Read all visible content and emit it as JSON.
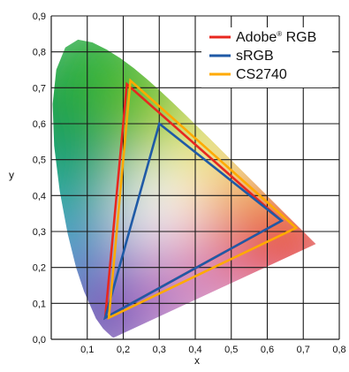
{
  "chart_data": {
    "type": "line",
    "title": "",
    "xlabel": "x",
    "ylabel": "y",
    "xlim": [
      0,
      0.8
    ],
    "ylim": [
      0,
      0.9
    ],
    "x_ticks": [
      {
        "value": 0.1,
        "label": "0,1"
      },
      {
        "value": 0.2,
        "label": "0,2"
      },
      {
        "value": 0.3,
        "label": "0,3"
      },
      {
        "value": 0.4,
        "label": "0,4"
      },
      {
        "value": 0.5,
        "label": "0,5"
      },
      {
        "value": 0.6,
        "label": "0,6"
      },
      {
        "value": 0.7,
        "label": "0,7"
      },
      {
        "value": 0.8,
        "label": "0,8"
      }
    ],
    "y_ticks": [
      {
        "value": 0.0,
        "label": "0,0"
      },
      {
        "value": 0.1,
        "label": "0,1"
      },
      {
        "value": 0.2,
        "label": "0,2"
      },
      {
        "value": 0.3,
        "label": "0,3"
      },
      {
        "value": 0.4,
        "label": "0,4"
      },
      {
        "value": 0.5,
        "label": "0,5"
      },
      {
        "value": 0.6,
        "label": "0,6"
      },
      {
        "value": 0.7,
        "label": "0,7"
      },
      {
        "value": 0.8,
        "label": "0,8"
      },
      {
        "value": 0.9,
        "label": "0,9"
      }
    ],
    "grid": true,
    "legend_position": "top-right",
    "spectral_locus": [
      [
        0.1741,
        0.005
      ],
      [
        0.1738,
        0.0049
      ],
      [
        0.1733,
        0.0048
      ],
      [
        0.1726,
        0.0048
      ],
      [
        0.1714,
        0.0051
      ],
      [
        0.1689,
        0.0069
      ],
      [
        0.1644,
        0.0109
      ],
      [
        0.1566,
        0.0177
      ],
      [
        0.144,
        0.0297
      ],
      [
        0.1241,
        0.0578
      ],
      [
        0.0913,
        0.1327
      ],
      [
        0.0687,
        0.2007
      ],
      [
        0.0454,
        0.295
      ],
      [
        0.0235,
        0.4127
      ],
      [
        0.0082,
        0.5384
      ],
      [
        0.0039,
        0.6548
      ],
      [
        0.0139,
        0.7502
      ],
      [
        0.0389,
        0.812
      ],
      [
        0.0743,
        0.8338
      ],
      [
        0.1142,
        0.8262
      ],
      [
        0.1547,
        0.8059
      ],
      [
        0.1929,
        0.7816
      ],
      [
        0.2296,
        0.7543
      ],
      [
        0.2658,
        0.7243
      ],
      [
        0.3016,
        0.6923
      ],
      [
        0.3373,
        0.6589
      ],
      [
        0.3731,
        0.6245
      ],
      [
        0.4087,
        0.5896
      ],
      [
        0.4441,
        0.5547
      ],
      [
        0.4788,
        0.5202
      ],
      [
        0.5125,
        0.4866
      ],
      [
        0.5448,
        0.4544
      ],
      [
        0.5752,
        0.4242
      ],
      [
        0.6029,
        0.3965
      ],
      [
        0.627,
        0.3725
      ],
      [
        0.6482,
        0.3514
      ],
      [
        0.6658,
        0.334
      ],
      [
        0.6801,
        0.3197
      ],
      [
        0.6915,
        0.3083
      ],
      [
        0.7006,
        0.2993
      ],
      [
        0.7079,
        0.292
      ],
      [
        0.714,
        0.2859
      ],
      [
        0.719,
        0.2809
      ],
      [
        0.723,
        0.277
      ],
      [
        0.726,
        0.274
      ],
      [
        0.7283,
        0.2717
      ],
      [
        0.73,
        0.27
      ],
      [
        0.7311,
        0.2689
      ],
      [
        0.732,
        0.268
      ],
      [
        0.7327,
        0.2673
      ],
      [
        0.7334,
        0.2666
      ],
      [
        0.734,
        0.266
      ],
      [
        0.7344,
        0.2656
      ],
      [
        0.7346,
        0.2654
      ],
      [
        0.7347,
        0.2653
      ]
    ],
    "series": [
      {
        "name": "Adobe® RGB",
        "color": "#e8271f",
        "points": [
          [
            0.64,
            0.33
          ],
          [
            0.21,
            0.71
          ],
          [
            0.15,
            0.06
          ]
        ]
      },
      {
        "name": "sRGB",
        "color": "#1f5aa6",
        "points": [
          [
            0.64,
            0.33
          ],
          [
            0.3,
            0.6
          ],
          [
            0.15,
            0.06
          ]
        ]
      },
      {
        "name": "CS2740",
        "color": "#ffaa00",
        "points": [
          [
            0.68,
            0.31
          ],
          [
            0.22,
            0.72
          ],
          [
            0.16,
            0.06
          ]
        ]
      }
    ],
    "legend": {
      "items": [
        {
          "text": "Adobe",
          "sup": "®",
          "tail": " RGB",
          "color": "#e8271f"
        },
        {
          "text": "sRGB",
          "sup": "",
          "tail": "",
          "color": "#1f5aa6"
        },
        {
          "text": "CS2740",
          "sup": "",
          "tail": "",
          "color": "#ffaa00"
        }
      ]
    }
  }
}
